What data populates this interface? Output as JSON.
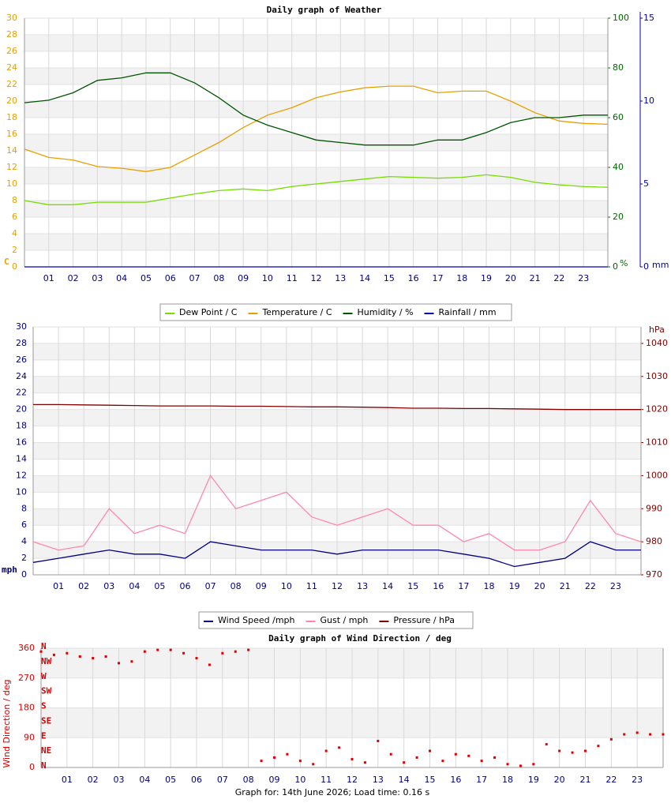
{
  "chart_data": [
    {
      "type": "line",
      "title": "Daily graph of Weather",
      "x": [
        0,
        1,
        2,
        3,
        4,
        5,
        6,
        7,
        8,
        9,
        10,
        11,
        12,
        13,
        14,
        15,
        16,
        17,
        18,
        19,
        20,
        21,
        22,
        23,
        24
      ],
      "xlim": [
        0,
        24
      ],
      "xticks": [
        {
          "value": 1,
          "label": "01"
        },
        {
          "value": 2,
          "label": "02"
        },
        {
          "value": 3,
          "label": "03"
        },
        {
          "value": 4,
          "label": "04"
        },
        {
          "value": 5,
          "label": "05"
        },
        {
          "value": 6,
          "label": "06"
        },
        {
          "value": 7,
          "label": "07"
        },
        {
          "value": 8,
          "label": "08"
        },
        {
          "value": 9,
          "label": "09"
        },
        {
          "value": 10,
          "label": "10"
        },
        {
          "value": 11,
          "label": "11"
        },
        {
          "value": 12,
          "label": "12"
        },
        {
          "value": 13,
          "label": "13"
        },
        {
          "value": 14,
          "label": "14"
        },
        {
          "value": 15,
          "label": "15"
        },
        {
          "value": 16,
          "label": "16"
        },
        {
          "value": 17,
          "label": "17"
        },
        {
          "value": 18,
          "label": "18"
        },
        {
          "value": 19,
          "label": "19"
        },
        {
          "value": 20,
          "label": "20"
        },
        {
          "value": 21,
          "label": "21"
        },
        {
          "value": 22,
          "label": "22"
        },
        {
          "value": 23,
          "label": "23"
        }
      ],
      "ylim": [
        0,
        30
      ],
      "yticks": [
        0,
        2,
        4,
        6,
        8,
        10,
        12,
        14,
        16,
        18,
        20,
        22,
        24,
        26,
        28,
        30
      ],
      "ylabel": "C",
      "ytick_color": "#e8a000",
      "y2lim": [
        0,
        100
      ],
      "y2ticks": [
        0,
        20,
        40,
        60,
        80,
        100
      ],
      "y2label": "%",
      "y2tick_color": "#006600",
      "y3lim": [
        0,
        15
      ],
      "y3ticks": [
        0,
        5,
        10,
        15
      ],
      "y3label": "mm",
      "y3tick_color": "#0000aa",
      "grid": true,
      "series": [
        {
          "name": "Dew Point / C",
          "color": "#77dd00",
          "values": [
            8.0,
            7.5,
            7.5,
            7.8,
            7.8,
            7.8,
            8.3,
            8.8,
            9.2,
            9.4,
            9.2,
            9.7,
            10.0,
            10.3,
            10.6,
            10.9,
            10.8,
            10.7,
            10.8,
            11.1,
            10.8,
            10.2,
            9.9,
            9.7,
            9.6
          ]
        },
        {
          "name": "Temperature / C",
          "color": "#e8a000",
          "values": [
            14.2,
            13.2,
            12.9,
            12.1,
            11.9,
            11.5,
            12.0,
            13.5,
            15.0,
            16.8,
            18.3,
            19.2,
            20.4,
            21.1,
            21.6,
            21.8,
            21.8,
            21.0,
            21.2,
            21.2,
            20.0,
            18.6,
            17.6,
            17.3,
            17.2
          ]
        },
        {
          "name": "Humidity / %",
          "color": "#005500",
          "axis": "y2",
          "values": [
            66,
            67,
            70,
            75,
            76,
            78,
            78,
            74,
            68,
            61,
            57,
            54,
            51,
            50,
            49,
            49,
            49,
            51,
            51,
            54,
            58,
            60,
            60,
            61,
            61
          ]
        },
        {
          "name": "Rainfall / mm",
          "color": "#0000aa",
          "axis": "y3",
          "values": [
            0,
            0,
            0,
            0,
            0,
            0,
            0,
            0,
            0,
            0,
            0,
            0,
            0,
            0,
            0,
            0,
            0,
            0,
            0,
            0,
            0,
            0,
            0,
            0,
            0
          ]
        }
      ]
    },
    {
      "type": "line",
      "x": [
        0,
        1,
        2,
        3,
        4,
        5,
        6,
        7,
        8,
        9,
        10,
        11,
        12,
        13,
        14,
        15,
        16,
        17,
        18,
        19,
        20,
        21,
        22,
        23,
        24
      ],
      "xlim": [
        0,
        24
      ],
      "xticks": [
        {
          "value": 1,
          "label": "01"
        },
        {
          "value": 2,
          "label": "02"
        },
        {
          "value": 3,
          "label": "03"
        },
        {
          "value": 4,
          "label": "04"
        },
        {
          "value": 5,
          "label": "05"
        },
        {
          "value": 6,
          "label": "06"
        },
        {
          "value": 7,
          "label": "07"
        },
        {
          "value": 8,
          "label": "08"
        },
        {
          "value": 9,
          "label": "09"
        },
        {
          "value": 10,
          "label": "10"
        },
        {
          "value": 11,
          "label": "11"
        },
        {
          "value": 12,
          "label": "12"
        },
        {
          "value": 13,
          "label": "13"
        },
        {
          "value": 14,
          "label": "14"
        },
        {
          "value": 15,
          "label": "15"
        },
        {
          "value": 16,
          "label": "16"
        },
        {
          "value": 17,
          "label": "17"
        },
        {
          "value": 18,
          "label": "18"
        },
        {
          "value": 19,
          "label": "19"
        },
        {
          "value": 20,
          "label": "20"
        },
        {
          "value": 21,
          "label": "21"
        },
        {
          "value": 22,
          "label": "22"
        },
        {
          "value": 23,
          "label": "23"
        }
      ],
      "ylim": [
        0,
        30
      ],
      "yticks": [
        0,
        2,
        4,
        6,
        8,
        10,
        12,
        14,
        16,
        18,
        20,
        22,
        24,
        26,
        28,
        30
      ],
      "ylabel": "mph",
      "ytick_color": "#000080",
      "y2lim": [
        970,
        1045
      ],
      "y2ticks": [
        970,
        980,
        990,
        1000,
        1010,
        1020,
        1030,
        1040
      ],
      "y2label": "hPa",
      "y2tick_color": "#800000",
      "grid": true,
      "series": [
        {
          "name": "Wind Speed /mph",
          "color": "#000080",
          "values": [
            1.5,
            2,
            2.5,
            3,
            2.5,
            2.5,
            2,
            4,
            3.5,
            3,
            3,
            3,
            2.5,
            3,
            3,
            3,
            3,
            2.5,
            2,
            1,
            1.5,
            2,
            4,
            3,
            3
          ]
        },
        {
          "name": "Gust / mph",
          "color": "#ff88aa",
          "values": [
            4,
            3,
            3.5,
            8,
            5,
            6,
            5,
            12,
            8,
            9,
            10,
            7,
            6,
            7,
            8,
            6,
            6,
            4,
            5,
            3,
            3,
            4,
            9,
            5,
            4
          ]
        },
        {
          "name": "Pressure / hPa",
          "color": "#800000",
          "axis": "y2",
          "values": [
            1021.5,
            1021.5,
            1021.4,
            1021.3,
            1021.2,
            1021.1,
            1021.1,
            1021.1,
            1021.0,
            1021.0,
            1020.9,
            1020.8,
            1020.8,
            1020.7,
            1020.6,
            1020.4,
            1020.4,
            1020.3,
            1020.3,
            1020.2,
            1020.1,
            1020.0,
            1020.0,
            1020.0,
            1020.0
          ]
        }
      ]
    },
    {
      "type": "scatter",
      "title": "Daily graph of Wind Direction / deg",
      "ylabel": "Wind Direction / deg",
      "note": "Graph for: 14th June 2026; Load time: 0.16 s",
      "x": [
        0,
        0.5,
        1,
        1.5,
        2,
        2.5,
        3,
        3.5,
        4,
        4.5,
        5,
        5.5,
        6,
        6.5,
        7,
        7.5,
        8,
        8.5,
        9,
        9.5,
        10,
        10.5,
        11,
        11.5,
        12,
        12.5,
        13,
        13.5,
        14,
        14.5,
        15,
        15.5,
        16,
        16.5,
        17,
        17.5,
        18,
        18.5,
        19,
        19.5,
        20,
        20.5,
        21,
        21.5,
        22,
        22.5,
        23,
        23.5,
        24
      ],
      "values": [
        350,
        340,
        345,
        335,
        330,
        335,
        315,
        320,
        350,
        355,
        355,
        345,
        330,
        310,
        345,
        350,
        355,
        20,
        30,
        40,
        20,
        10,
        50,
        60,
        25,
        15,
        80,
        40,
        15,
        30,
        50,
        20,
        40,
        35,
        20,
        30,
        10,
        5,
        10,
        70,
        50,
        45,
        50,
        65,
        85,
        100,
        105,
        100,
        100
      ],
      "color": "#dd0000",
      "xlim": [
        0,
        24
      ],
      "xticks": [
        {
          "value": 1,
          "label": "01"
        },
        {
          "value": 2,
          "label": "02"
        },
        {
          "value": 3,
          "label": "03"
        },
        {
          "value": 4,
          "label": "04"
        },
        {
          "value": 5,
          "label": "05"
        },
        {
          "value": 6,
          "label": "06"
        },
        {
          "value": 7,
          "label": "07"
        },
        {
          "value": 8,
          "label": "08"
        },
        {
          "value": 9,
          "label": "09"
        },
        {
          "value": 10,
          "label": "10"
        },
        {
          "value": 11,
          "label": "11"
        },
        {
          "value": 12,
          "label": "12"
        },
        {
          "value": 13,
          "label": "13"
        },
        {
          "value": 14,
          "label": "14"
        },
        {
          "value": 15,
          "label": "15"
        },
        {
          "value": 16,
          "label": "16"
        },
        {
          "value": 17,
          "label": "17"
        },
        {
          "value": 18,
          "label": "18"
        },
        {
          "value": 19,
          "label": "19"
        },
        {
          "value": 20,
          "label": "20"
        },
        {
          "value": 21,
          "label": "21"
        },
        {
          "value": 22,
          "label": "22"
        },
        {
          "value": 23,
          "label": "23"
        }
      ],
      "ylim": [
        0,
        360
      ],
      "yticks": [
        0,
        90,
        180,
        270,
        360
      ],
      "ytick_color": "#dd0000",
      "compass_ticks": [
        {
          "value": 360,
          "label": "N"
        },
        {
          "value": 315,
          "label": "NW"
        },
        {
          "value": 270,
          "label": "W"
        },
        {
          "value": 225,
          "label": "SW"
        },
        {
          "value": 180,
          "label": "S"
        },
        {
          "value": 135,
          "label": "SE"
        },
        {
          "value": 90,
          "label": "E"
        },
        {
          "value": 45,
          "label": "NE"
        },
        {
          "value": 0,
          "label": "N"
        }
      ],
      "grid": true
    }
  ]
}
